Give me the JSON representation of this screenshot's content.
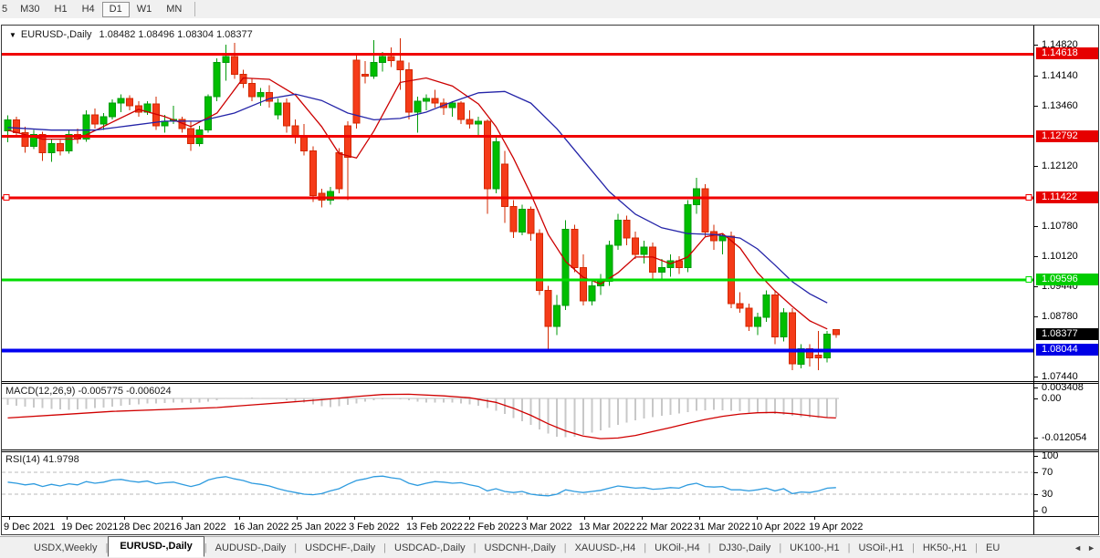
{
  "toolbar": {
    "timeframes": [
      "5",
      "M30",
      "H1",
      "H4",
      "D1",
      "W1",
      "MN"
    ],
    "active_timeframe": "D1"
  },
  "chart_data": {
    "type": "candlestick",
    "collapse_marker": "▼",
    "symbol": "EURUSD-,Daily",
    "ohlc_readout": "1.08482 1.08496 1.08304 1.08377",
    "price_axis": {
      "plain_ticks": [
        "1.14820",
        "1.14140",
        "1.13460",
        "1.12120",
        "1.10780",
        "1.10120",
        "1.09440",
        "1.08780",
        "1.07440"
      ],
      "line_labels": [
        {
          "text": "1.14618",
          "bg": "#e60000"
        },
        {
          "text": "1.12792",
          "bg": "#e60000"
        },
        {
          "text": "1.11422",
          "bg": "#e60000"
        },
        {
          "text": "1.09596",
          "bg": "#00cc00"
        },
        {
          "text": "1.08044",
          "bg": "#0000e6"
        }
      ],
      "last_price_label": {
        "text": "1.08377",
        "bg": "#000000"
      }
    },
    "hlines": [
      {
        "price": 1.14618,
        "color": "#f00000",
        "width": 3,
        "handles": []
      },
      {
        "price": 1.12792,
        "color": "#f00000",
        "width": 3,
        "handles": []
      },
      {
        "price": 1.11422,
        "color": "#f00000",
        "width": 3,
        "handles": [
          "left",
          "right"
        ]
      },
      {
        "price": 1.09596,
        "color": "#00dc00",
        "width": 3,
        "handles": [
          "right"
        ]
      },
      {
        "price": 1.08044,
        "color": "#0000f0",
        "width": 4,
        "handles": []
      }
    ],
    "x_tick_labels": [
      "9 Dec 2021",
      "19 Dec 2021",
      "28 Dec 2021",
      "6 Jan 2022",
      "16 Jan 2022",
      "25 Jan 2022",
      "3 Feb 2022",
      "13 Feb 2022",
      "22 Feb 2022",
      "3 Mar 2022",
      "13 Mar 2022",
      "22 Mar 2022",
      "31 Mar 2022",
      "10 Apr 2022",
      "19 Apr 2022"
    ],
    "colors": {
      "bull": "#00be00",
      "bull_border": "#009a0a",
      "bear": "#f53b19",
      "bear_border": "#d22800"
    },
    "candles": [
      [
        1.129,
        1.1325,
        1.1265,
        1.1315
      ],
      [
        1.1315,
        1.1322,
        1.1276,
        1.1286
      ],
      [
        1.1286,
        1.13,
        1.1242,
        1.1256
      ],
      [
        1.1256,
        1.1292,
        1.125,
        1.1282
      ],
      [
        1.1282,
        1.1288,
        1.1224,
        1.1242
      ],
      [
        1.1242,
        1.1272,
        1.1222,
        1.1262
      ],
      [
        1.1262,
        1.127,
        1.1236,
        1.1246
      ],
      [
        1.1246,
        1.1292,
        1.124,
        1.1282
      ],
      [
        1.1282,
        1.1296,
        1.1262,
        1.1272
      ],
      [
        1.1272,
        1.1336,
        1.1266,
        1.1326
      ],
      [
        1.1326,
        1.134,
        1.1296,
        1.1306
      ],
      [
        1.1306,
        1.133,
        1.1292,
        1.1322
      ],
      [
        1.1322,
        1.136,
        1.1316,
        1.1352
      ],
      [
        1.1352,
        1.1372,
        1.1332,
        1.1362
      ],
      [
        1.1362,
        1.137,
        1.1336,
        1.1346
      ],
      [
        1.1346,
        1.1356,
        1.1322,
        1.1332
      ],
      [
        1.1332,
        1.1356,
        1.1326,
        1.135
      ],
      [
        1.135,
        1.1366,
        1.1292,
        1.1302
      ],
      [
        1.1302,
        1.1326,
        1.1286,
        1.1312
      ],
      [
        1.1312,
        1.1346,
        1.1306,
        1.1316
      ],
      [
        1.1316,
        1.1322,
        1.1286,
        1.1296
      ],
      [
        1.1296,
        1.1312,
        1.1246,
        1.1262
      ],
      [
        1.1262,
        1.1302,
        1.1256,
        1.1292
      ],
      [
        1.1292,
        1.1372,
        1.1286,
        1.1366
      ],
      [
        1.1366,
        1.1452,
        1.1356,
        1.1442
      ],
      [
        1.1442,
        1.1482,
        1.1402,
        1.1456
      ],
      [
        1.1456,
        1.1486,
        1.1406,
        1.1416
      ],
      [
        1.1416,
        1.1426,
        1.1386,
        1.1396
      ],
      [
        1.1396,
        1.1406,
        1.1356,
        1.1366
      ],
      [
        1.1366,
        1.1386,
        1.1346,
        1.1376
      ],
      [
        1.1376,
        1.1392,
        1.1342,
        1.1356
      ],
      [
        1.1326,
        1.1362,
        1.1316,
        1.1352
      ],
      [
        1.1352,
        1.1362,
        1.1286,
        1.1302
      ],
      [
        1.1302,
        1.1316,
        1.1262,
        1.1276
      ],
      [
        1.1276,
        1.1306,
        1.1236,
        1.1246
      ],
      [
        1.1246,
        1.1256,
        1.1132,
        1.1146
      ],
      [
        1.1152,
        1.1162,
        1.112,
        1.1136
      ],
      [
        1.1136,
        1.1166,
        1.1126,
        1.1156
      ],
      [
        1.1242,
        1.1252,
        1.1152,
        1.1162
      ],
      [
        1.1302,
        1.1312,
        1.1136,
        1.1232
      ],
      [
        1.1448,
        1.1462,
        1.1296,
        1.1308
      ],
      [
        1.1416,
        1.1446,
        1.1396,
        1.1412
      ],
      [
        1.1412,
        1.1492,
        1.1406,
        1.1442
      ],
      [
        1.1442,
        1.1466,
        1.1422,
        1.1456
      ],
      [
        1.1456,
        1.1476,
        1.1432,
        1.1446
      ],
      [
        1.1446,
        1.1496,
        1.1382,
        1.1426
      ],
      [
        1.1426,
        1.1442,
        1.1316,
        1.1332
      ],
      [
        1.1332,
        1.1366,
        1.1286,
        1.1356
      ],
      [
        1.1356,
        1.1372,
        1.1336,
        1.1362
      ],
      [
        1.1362,
        1.1382,
        1.1342,
        1.1352
      ],
      [
        1.1352,
        1.1362,
        1.1326,
        1.1342
      ],
      [
        1.1342,
        1.1356,
        1.1322,
        1.1352
      ],
      [
        1.1352,
        1.1356,
        1.1306,
        1.1316
      ],
      [
        1.1316,
        1.1336,
        1.1296,
        1.1306
      ],
      [
        1.1306,
        1.1322,
        1.1276,
        1.1312
      ],
      [
        1.1312,
        1.1316,
        1.1106,
        1.1162
      ],
      [
        1.1162,
        1.1276,
        1.1152,
        1.1266
      ],
      [
        1.1216,
        1.1246,
        1.1086,
        1.1122
      ],
      [
        1.1122,
        1.1136,
        1.1052,
        1.1066
      ],
      [
        1.1066,
        1.1126,
        1.1058,
        1.1116
      ],
      [
        1.1116,
        1.1122,
        1.1046,
        1.1062
      ],
      [
        1.1062,
        1.1072,
        1.0926,
        1.0936
      ],
      [
        1.0936,
        1.0946,
        1.0806,
        1.0856
      ],
      [
        1.0856,
        1.0926,
        1.0836,
        1.0902
      ],
      [
        1.0902,
        1.1092,
        1.0892,
        1.1072
      ],
      [
        1.1072,
        1.1082,
        1.0976,
        1.0986
      ],
      [
        1.0986,
        1.1016,
        1.0902,
        1.0912
      ],
      [
        1.0912,
        1.0956,
        1.0902,
        1.0946
      ],
      [
        1.0946,
        1.0972,
        1.0926,
        1.0956
      ],
      [
        1.0956,
        1.1046,
        1.0946,
        1.1036
      ],
      [
        1.1036,
        1.1106,
        1.1026,
        1.1092
      ],
      [
        1.1092,
        1.1102,
        1.1036,
        1.1052
      ],
      [
        1.1052,
        1.1066,
        1.1006,
        1.1016
      ],
      [
        1.1016,
        1.1046,
        1.0996,
        1.1032
      ],
      [
        1.1032,
        1.1042,
        1.0962,
        1.0976
      ],
      [
        1.0976,
        1.1006,
        1.0956,
        1.0986
      ],
      [
        1.0986,
        1.1016,
        1.0966,
        1.1002
      ],
      [
        1.1002,
        1.1012,
        1.0972,
        1.0986
      ],
      [
        1.0986,
        1.1136,
        1.0976,
        1.1126
      ],
      [
        1.1126,
        1.1186,
        1.1106,
        1.1162
      ],
      [
        1.1162,
        1.1172,
        1.1056,
        1.1066
      ],
      [
        1.1066,
        1.1082,
        1.1026,
        1.1046
      ],
      [
        1.1046,
        1.1062,
        1.1016,
        1.1056
      ],
      [
        1.1056,
        1.1066,
        1.0896,
        1.0906
      ],
      [
        1.0906,
        1.0932,
        1.0886,
        1.0896
      ],
      [
        1.0896,
        1.0906,
        1.0846,
        1.0856
      ],
      [
        1.0856,
        1.0886,
        1.0836,
        1.0876
      ],
      [
        1.0876,
        1.0936,
        1.0866,
        1.0926
      ],
      [
        1.0926,
        1.0936,
        1.0816,
        1.0832
      ],
      [
        1.0832,
        1.0896,
        1.0822,
        1.0886
      ],
      [
        1.0886,
        1.0896,
        1.0758,
        1.0772
      ],
      [
        1.0772,
        1.0816,
        1.0762,
        1.0806
      ],
      [
        1.0806,
        1.0816,
        1.0766,
        1.0786
      ],
      [
        1.0792,
        1.0846,
        1.0758,
        1.0786
      ],
      [
        1.0786,
        1.0846,
        1.0776,
        1.0838
      ],
      [
        1.08482,
        1.08496,
        1.08304,
        1.08377
      ]
    ],
    "ma_fast": {
      "color": "#cc0000",
      "points": [
        [
          0,
          1.1292
        ],
        [
          4,
          1.1272
        ],
        [
          8,
          1.1272
        ],
        [
          12,
          1.131
        ],
        [
          15,
          1.1338
        ],
        [
          18,
          1.1322
        ],
        [
          21,
          1.13
        ],
        [
          24,
          1.133
        ],
        [
          27,
          1.1408
        ],
        [
          30,
          1.1405
        ],
        [
          33,
          1.137
        ],
        [
          36,
          1.13
        ],
        [
          38,
          1.124
        ],
        [
          40,
          1.123
        ],
        [
          42,
          1.129
        ],
        [
          45,
          1.1398
        ],
        [
          48,
          1.1408
        ],
        [
          51,
          1.139
        ],
        [
          54,
          1.135
        ],
        [
          56,
          1.13
        ],
        [
          58,
          1.123
        ],
        [
          60,
          1.115
        ],
        [
          62,
          1.106
        ],
        [
          64,
          1.1
        ],
        [
          66,
          1.0965
        ],
        [
          68,
          1.095
        ],
        [
          70,
          1.0975
        ],
        [
          72,
          1.101
        ],
        [
          74,
          1.101
        ],
        [
          76,
          1.0995
        ],
        [
          78,
          1.101
        ],
        [
          80,
          1.1055
        ],
        [
          82,
          1.1062
        ],
        [
          84,
          1.103
        ],
        [
          86,
          1.0975
        ],
        [
          88,
          1.0935
        ],
        [
          90,
          1.09
        ],
        [
          92,
          1.0868
        ],
        [
          94,
          1.085
        ]
      ]
    },
    "ma_slow": {
      "color": "#2424a8",
      "points": [
        [
          0,
          1.1298
        ],
        [
          5,
          1.1292
        ],
        [
          10,
          1.1292
        ],
        [
          14,
          1.1302
        ],
        [
          18,
          1.1312
        ],
        [
          22,
          1.1312
        ],
        [
          26,
          1.133
        ],
        [
          30,
          1.1362
        ],
        [
          33,
          1.1372
        ],
        [
          36,
          1.1358
        ],
        [
          39,
          1.133
        ],
        [
          42,
          1.1315
        ],
        [
          45,
          1.1318
        ],
        [
          48,
          1.1332
        ],
        [
          51,
          1.1355
        ],
        [
          54,
          1.1375
        ],
        [
          57,
          1.1378
        ],
        [
          60,
          1.1352
        ],
        [
          63,
          1.1295
        ],
        [
          66,
          1.1225
        ],
        [
          69,
          1.1155
        ],
        [
          72,
          1.1105
        ],
        [
          75,
          1.1075
        ],
        [
          78,
          1.1062
        ],
        [
          81,
          1.106
        ],
        [
          84,
          1.1052
        ],
        [
          86,
          1.1028
        ],
        [
          88,
          1.0992
        ],
        [
          90,
          1.0955
        ],
        [
          92,
          1.0928
        ],
        [
          94,
          1.0908
        ]
      ]
    },
    "macd": {
      "label": "MACD(12,26,9) -0.005775 -0.006024",
      "bar_color": "#c8c8c8",
      "signal_color": "#d00000",
      "y_ticks": [
        {
          "v": 0.003408,
          "text": "0.003408"
        },
        {
          "v": 0,
          "text": "0.00"
        },
        {
          "v": -0.012054,
          "text": "-0.012054"
        }
      ],
      "values": [
        -0.002,
        -0.0022,
        -0.0025,
        -0.0028,
        -0.003,
        -0.0032,
        -0.0034,
        -0.0035,
        -0.0034,
        -0.0032,
        -0.003,
        -0.0028,
        -0.0025,
        -0.0022,
        -0.002,
        -0.0018,
        -0.0016,
        -0.0015,
        -0.0014,
        -0.0013,
        -0.0013,
        -0.0014,
        -0.0013,
        -0.001,
        -0.0006,
        -0.0002,
        0.0,
        0.0002,
        0.0003,
        0.0002,
        0.0,
        -0.0002,
        -0.0005,
        -0.0008,
        -0.0012,
        -0.0018,
        -0.0024,
        -0.0026,
        -0.0024,
        -0.002,
        -0.0015,
        -0.001,
        -0.0006,
        -0.0003,
        -0.0002,
        -0.0003,
        -0.0006,
        -0.001,
        -0.0012,
        -0.0012,
        -0.0012,
        -0.0013,
        -0.0015,
        -0.0018,
        -0.0022,
        -0.003,
        -0.0038,
        -0.0048,
        -0.006,
        -0.007,
        -0.0082,
        -0.0095,
        -0.0108,
        -0.0118,
        -0.012,
        -0.0118,
        -0.0112,
        -0.0105,
        -0.0098,
        -0.009,
        -0.0082,
        -0.0075,
        -0.0068,
        -0.0062,
        -0.0058,
        -0.0054,
        -0.005,
        -0.0046,
        -0.0042,
        -0.0038,
        -0.0036,
        -0.0035,
        -0.0036,
        -0.0038,
        -0.004,
        -0.0043,
        -0.0045,
        -0.0046,
        -0.0048,
        -0.005,
        -0.0054,
        -0.0057,
        -0.0059,
        -0.006,
        -0.0059,
        -0.00578
      ],
      "signal_points": [
        [
          0,
          -0.006
        ],
        [
          6,
          -0.005
        ],
        [
          12,
          -0.004
        ],
        [
          18,
          -0.0034
        ],
        [
          24,
          -0.0028
        ],
        [
          28,
          -0.002
        ],
        [
          32,
          -0.0012
        ],
        [
          36,
          -0.0004
        ],
        [
          40,
          0.0006
        ],
        [
          43,
          0.0012
        ],
        [
          46,
          0.0013
        ],
        [
          50,
          0.0008
        ],
        [
          53,
          0.0002
        ],
        [
          56,
          -0.0012
        ],
        [
          58,
          -0.003
        ],
        [
          60,
          -0.0052
        ],
        [
          62,
          -0.0078
        ],
        [
          64,
          -0.01
        ],
        [
          66,
          -0.0116
        ],
        [
          68,
          -0.0124
        ],
        [
          70,
          -0.0122
        ],
        [
          72,
          -0.0114
        ],
        [
          74,
          -0.0102
        ],
        [
          76,
          -0.009
        ],
        [
          78,
          -0.0077
        ],
        [
          80,
          -0.0065
        ],
        [
          82,
          -0.0055
        ],
        [
          84,
          -0.0048
        ],
        [
          86,
          -0.0044
        ],
        [
          88,
          -0.0043
        ],
        [
          90,
          -0.0047
        ],
        [
          92,
          -0.0053
        ],
        [
          94,
          -0.0059
        ],
        [
          95,
          -0.006
        ]
      ]
    },
    "rsi": {
      "label": "RSI(14) 41.9798",
      "line_color": "#2e9bdf",
      "levels": [
        70,
        30
      ],
      "y_ticks": [
        {
          "v": 100,
          "text": "100"
        },
        {
          "v": 70,
          "text": "70"
        },
        {
          "v": 30,
          "text": "30"
        },
        {
          "v": 0,
          "text": "0"
        }
      ],
      "values": [
        52,
        50,
        47,
        49,
        44,
        48,
        45,
        49,
        47,
        53,
        50,
        52,
        56,
        57,
        54,
        52,
        54,
        49,
        51,
        52,
        48,
        44,
        48,
        56,
        60,
        62,
        58,
        55,
        50,
        48,
        45,
        40,
        36,
        33,
        30,
        29,
        31,
        36,
        40,
        48,
        55,
        58,
        62,
        63,
        60,
        58,
        50,
        46,
        50,
        53,
        52,
        50,
        51,
        47,
        44,
        36,
        40,
        35,
        33,
        35,
        30,
        28,
        27,
        30,
        38,
        35,
        33,
        35,
        37,
        41,
        45,
        43,
        41,
        42,
        39,
        40,
        42,
        41,
        47,
        50,
        44,
        43,
        44,
        38,
        38,
        36,
        38,
        41,
        36,
        40,
        31,
        34,
        33,
        36,
        41,
        42
      ]
    }
  },
  "tabs": {
    "items": [
      "USDX,Weekly",
      "EURUSD-,Daily",
      "AUDUSD-,Daily",
      "USDCHF-,Daily",
      "USDCAD-,Daily",
      "USDCNH-,Daily",
      "XAUUSD-,H4",
      "UKOil-,H4",
      "DJ30-,Daily",
      "UK100-,H1",
      "USOil-,H1",
      "HK50-,H1"
    ],
    "active": "EURUSD-,Daily",
    "overflow_label": "EU",
    "scroll_left": "◄",
    "scroll_right": "►"
  }
}
